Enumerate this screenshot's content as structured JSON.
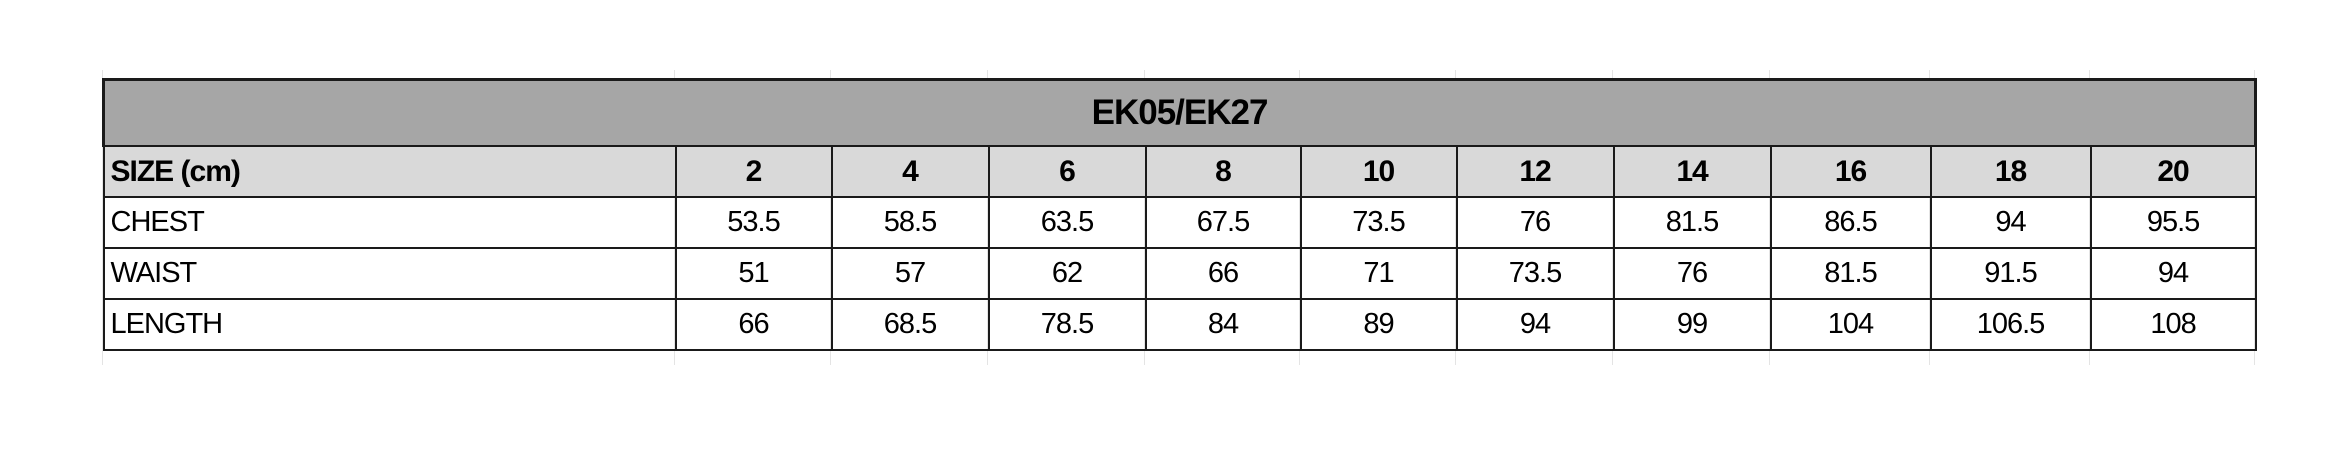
{
  "table": {
    "title": "EK05/EK27",
    "header_label": "SIZE (cm)",
    "sizes": [
      "2",
      "4",
      "6",
      "8",
      "10",
      "12",
      "14",
      "16",
      "18",
      "20"
    ],
    "rows": [
      {
        "label": "CHEST",
        "values": [
          "53.5",
          "58.5",
          "63.5",
          "67.5",
          "73.5",
          "76",
          "81.5",
          "86.5",
          "94",
          "95.5"
        ]
      },
      {
        "label": "WAIST",
        "values": [
          "51",
          "57",
          "62",
          "66",
          "71",
          "73.5",
          "76",
          "81.5",
          "91.5",
          "94"
        ]
      },
      {
        "label": "LENGTH",
        "values": [
          "66",
          "68.5",
          "78.5",
          "84",
          "89",
          "94",
          "99",
          "104",
          "106.5",
          "108"
        ]
      }
    ],
    "colors": {
      "title_bg": "#a6a6a6",
      "header_bg": "#d9d9d9",
      "border": "#1a1a1a"
    }
  }
}
